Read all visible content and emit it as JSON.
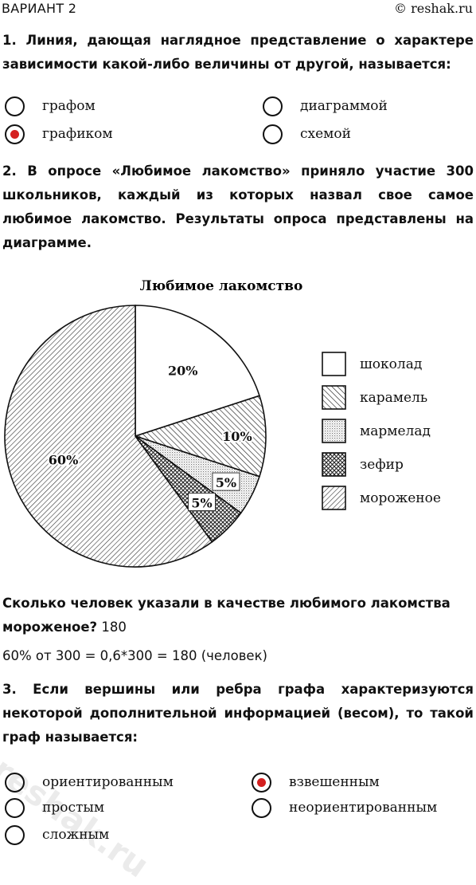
{
  "header": {
    "variant": "ВАРИАНТ 2",
    "site": "© reshak.ru"
  },
  "q1": {
    "text": "1. Линия, дающая наглядное представление о характере зависимости какой-либо величины от другой, называется:",
    "options": [
      {
        "label": "графом",
        "selected": false
      },
      {
        "label": "графиком",
        "selected": true
      },
      {
        "label": "диаграммой",
        "selected": false
      },
      {
        "label": "схемой",
        "selected": false
      }
    ]
  },
  "q2": {
    "text": "2. В опросе «Любимое лакомство» приняло участие 300 школьников, каждый из которых назвал свое самое любимое лакомство. Результаты опроса представлены на диаграмме.",
    "question": "Сколько человек указали в качестве любимого лакомства мороженое?",
    "answer": "180",
    "solution": "60% от 300 = 0,6*300 = 180 (человек)"
  },
  "chart_data": {
    "type": "pie",
    "title": "Любимое лакомство",
    "categories": [
      "шоколад",
      "карамель",
      "мармелад",
      "зефир",
      "мороженое"
    ],
    "values": [
      20,
      10,
      5,
      5,
      60
    ],
    "labels": [
      "20%",
      "10%",
      "5%",
      "5%",
      "60%"
    ],
    "legend": "right",
    "colors": {
      "stroke": "#111111",
      "fill": "#ffffff"
    }
  },
  "q3": {
    "text": "3. Если вершины или ребра графа характеризуются некоторой дополнительной информацией (весом), то такой граф называется:",
    "options": [
      {
        "label": "ориентированным",
        "selected": false
      },
      {
        "label": "простым",
        "selected": false
      },
      {
        "label": "сложным",
        "selected": false
      },
      {
        "label": "взвешенным",
        "selected": true
      },
      {
        "label": "неориентированным",
        "selected": false
      }
    ]
  },
  "watermark": "reshak.ru"
}
